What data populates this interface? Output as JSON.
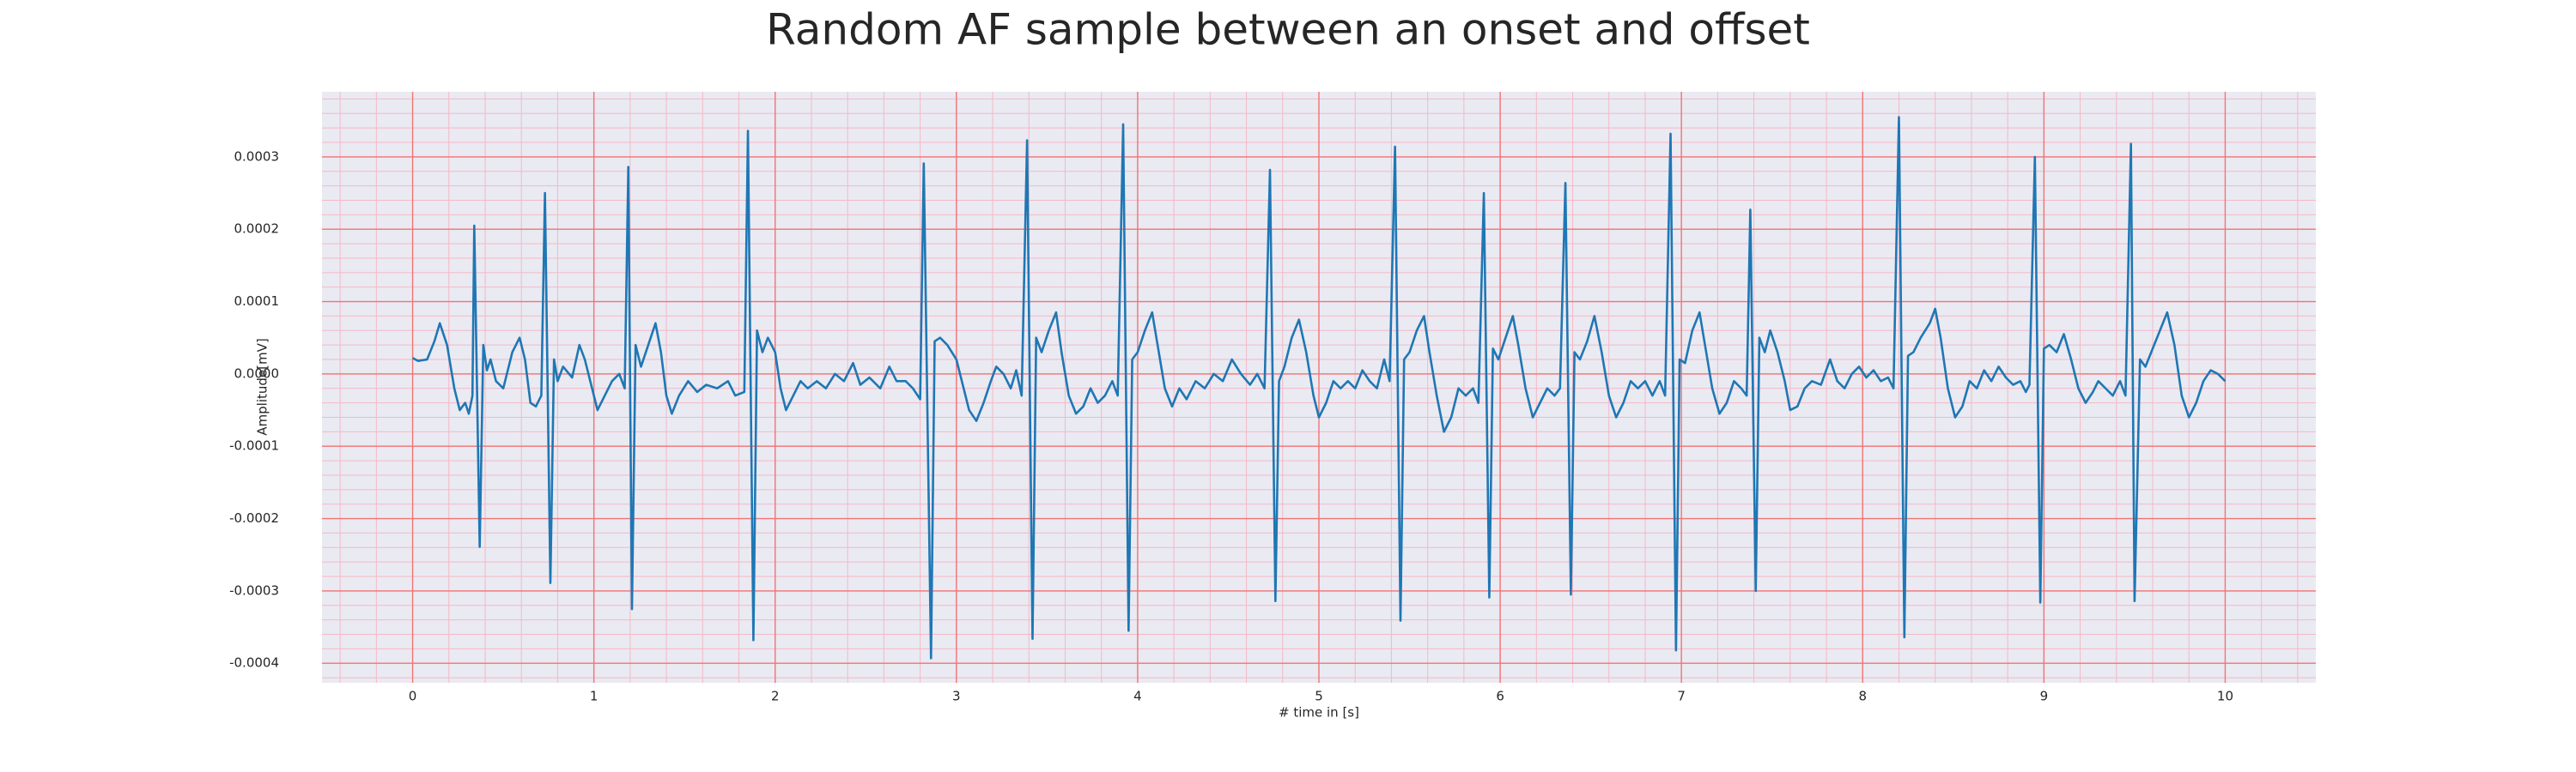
{
  "chart_data": {
    "type": "line",
    "title": "Random AF sample between an onset and offset",
    "x_label": "# time in [s]",
    "y_label": "Amplitude[mV]",
    "color": "#1f77b4",
    "grid": true,
    "minor_grid": true,
    "xlim": [
      -0.5,
      10.5
    ],
    "ylim": [
      -0.000427,
      0.00039
    ],
    "xticks": [
      0,
      1,
      2,
      3,
      4,
      5,
      6,
      7,
      8,
      9,
      10
    ],
    "yticks": [
      {
        "value": -0.0004,
        "label": "-0.0004"
      },
      {
        "value": -0.0003,
        "label": "-0.0003"
      },
      {
        "value": -0.0002,
        "label": "-0.0002"
      },
      {
        "value": -0.0001,
        "label": "-0.0001"
      },
      {
        "value": 0,
        "label": "0.0000"
      },
      {
        "value": 0.0001,
        "label": "0.0001"
      },
      {
        "value": 0.0002,
        "label": "0.0002"
      },
      {
        "value": 0.0003,
        "label": "0.0003"
      }
    ],
    "x": [
      0.0,
      0.03,
      0.08,
      0.12,
      0.15,
      0.19,
      0.23,
      0.26,
      0.29,
      0.31,
      0.33,
      0.34,
      0.37,
      0.39,
      0.41,
      0.43,
      0.46,
      0.5,
      0.55,
      0.59,
      0.62,
      0.65,
      0.68,
      0.71,
      0.73,
      0.76,
      0.78,
      0.8,
      0.83,
      0.88,
      0.92,
      0.95,
      0.99,
      1.02,
      1.06,
      1.1,
      1.14,
      1.17,
      1.19,
      1.21,
      1.23,
      1.26,
      1.3,
      1.34,
      1.37,
      1.4,
      1.43,
      1.47,
      1.52,
      1.57,
      1.62,
      1.68,
      1.74,
      1.78,
      1.83,
      1.85,
      1.88,
      1.9,
      1.93,
      1.96,
      2.0,
      2.03,
      2.06,
      2.1,
      2.14,
      2.18,
      2.23,
      2.28,
      2.33,
      2.38,
      2.43,
      2.47,
      2.52,
      2.58,
      2.63,
      2.67,
      2.72,
      2.76,
      2.8,
      2.82,
      2.86,
      2.88,
      2.91,
      2.95,
      3.0,
      3.03,
      3.07,
      3.11,
      3.15,
      3.19,
      3.22,
      3.26,
      3.3,
      3.33,
      3.36,
      3.39,
      3.42,
      3.44,
      3.47,
      3.51,
      3.55,
      3.58,
      3.62,
      3.66,
      3.7,
      3.74,
      3.78,
      3.82,
      3.86,
      3.89,
      3.92,
      3.95,
      3.97,
      4.0,
      4.04,
      4.08,
      4.11,
      4.15,
      4.19,
      4.23,
      4.27,
      4.32,
      4.37,
      4.42,
      4.47,
      4.52,
      4.57,
      4.62,
      4.66,
      4.7,
      4.73,
      4.76,
      4.78,
      4.81,
      4.85,
      4.89,
      4.93,
      4.97,
      5.0,
      5.04,
      5.08,
      5.12,
      5.16,
      5.2,
      5.24,
      5.28,
      5.32,
      5.36,
      5.39,
      5.42,
      5.45,
      5.47,
      5.5,
      5.54,
      5.58,
      5.61,
      5.65,
      5.69,
      5.73,
      5.77,
      5.81,
      5.85,
      5.88,
      5.91,
      5.94,
      5.96,
      5.99,
      6.03,
      6.07,
      6.1,
      6.14,
      6.18,
      6.22,
      6.26,
      6.3,
      6.33,
      6.36,
      6.39,
      6.41,
      6.44,
      6.48,
      6.52,
      6.56,
      6.6,
      6.64,
      6.68,
      6.72,
      6.76,
      6.8,
      6.84,
      6.88,
      6.91,
      6.94,
      6.97,
      6.99,
      7.02,
      7.06,
      7.1,
      7.13,
      7.17,
      7.21,
      7.25,
      7.29,
      7.33,
      7.36,
      7.38,
      7.41,
      7.43,
      7.46,
      7.49,
      7.53,
      7.57,
      7.6,
      7.64,
      7.68,
      7.72,
      7.77,
      7.82,
      7.86,
      7.9,
      7.94,
      7.98,
      8.02,
      8.06,
      8.1,
      8.14,
      8.17,
      8.2,
      8.23,
      8.25,
      8.28,
      8.32,
      8.37,
      8.4,
      8.43,
      8.47,
      8.51,
      8.55,
      8.59,
      8.63,
      8.67,
      8.71,
      8.75,
      8.79,
      8.83,
      8.87,
      8.9,
      8.92,
      8.95,
      8.98,
      9.0,
      9.03,
      9.07,
      9.11,
      9.15,
      9.19,
      9.23,
      9.27,
      9.3,
      9.34,
      9.38,
      9.42,
      9.45,
      9.48,
      9.5,
      9.53,
      9.56,
      9.6,
      9.64,
      9.68,
      9.72,
      9.76,
      9.8,
      9.84,
      9.88,
      9.92,
      9.96,
      10.0
    ],
    "values": [
      2.2e-05,
      1.8e-05,
      2e-05,
      4.5e-05,
      7e-05,
      4e-05,
      -2e-05,
      -5e-05,
      -4e-05,
      -5.5e-05,
      -3e-05,
      0.000205,
      -0.000239,
      4e-05,
      5e-06,
      2e-05,
      -1e-05,
      -2e-05,
      3e-05,
      5e-05,
      2e-05,
      -4e-05,
      -4.5e-05,
      -3e-05,
      0.00025,
      -0.000289,
      2e-05,
      -1e-05,
      1e-05,
      -5e-06,
      4e-05,
      2e-05,
      -2e-05,
      -5e-05,
      -3e-05,
      -1e-05,
      0,
      -2e-05,
      0.000286,
      -0.000325,
      4e-05,
      1e-05,
      4e-05,
      7e-05,
      3e-05,
      -3e-05,
      -5.5e-05,
      -3e-05,
      -1e-05,
      -2.5e-05,
      -1.5e-05,
      -2e-05,
      -1e-05,
      -3e-05,
      -2.5e-05,
      0.000336,
      -0.000368,
      6e-05,
      3e-05,
      5e-05,
      3e-05,
      -2e-05,
      -5e-05,
      -3e-05,
      -1e-05,
      -2e-05,
      -1e-05,
      -2e-05,
      0,
      -1e-05,
      1.5e-05,
      -1.5e-05,
      -5e-06,
      -2e-05,
      1e-05,
      -1e-05,
      -1e-05,
      -2e-05,
      -3.5e-05,
      0.000291,
      -0.000393,
      4.5e-05,
      5e-05,
      4e-05,
      2e-05,
      -1e-05,
      -5e-05,
      -6.5e-05,
      -4e-05,
      -1e-05,
      1e-05,
      0,
      -2e-05,
      5e-06,
      -3e-05,
      0.000323,
      -0.000366,
      5e-05,
      3e-05,
      6e-05,
      8.5e-05,
      3e-05,
      -3e-05,
      -5.5e-05,
      -4.5e-05,
      -2e-05,
      -4e-05,
      -3e-05,
      -1e-05,
      -3e-05,
      0.000345,
      -0.000355,
      2e-05,
      3e-05,
      6e-05,
      8.5e-05,
      4e-05,
      -2e-05,
      -4.5e-05,
      -2e-05,
      -3.5e-05,
      -1e-05,
      -2e-05,
      0,
      -1e-05,
      2e-05,
      0,
      -1.5e-05,
      0,
      -2e-05,
      0.000282,
      -0.000314,
      -1e-05,
      1e-05,
      5e-05,
      7.5e-05,
      3e-05,
      -3e-05,
      -6e-05,
      -4e-05,
      -1e-05,
      -2e-05,
      -1e-05,
      -2e-05,
      5e-06,
      -1e-05,
      -2e-05,
      2e-05,
      -1e-05,
      0.000314,
      -0.000341,
      2e-05,
      3e-05,
      6e-05,
      8e-05,
      3e-05,
      -3e-05,
      -8e-05,
      -6e-05,
      -2e-05,
      -3e-05,
      -2e-05,
      -4e-05,
      0.00025,
      -0.000309,
      3.5e-05,
      2e-05,
      5e-05,
      8e-05,
      4e-05,
      -2e-05,
      -6e-05,
      -4e-05,
      -2e-05,
      -3e-05,
      -2e-05,
      0.000264,
      -0.000305,
      3e-05,
      2e-05,
      4.5e-05,
      8e-05,
      3e-05,
      -3e-05,
      -6e-05,
      -4e-05,
      -1e-05,
      -2e-05,
      -1e-05,
      -3e-05,
      -1e-05,
      -3e-05,
      0.000332,
      -0.000382,
      2e-05,
      1.5e-05,
      6e-05,
      8.5e-05,
      4e-05,
      -2e-05,
      -5.5e-05,
      -4e-05,
      -1e-05,
      -2e-05,
      -3e-05,
      0.000227,
      -0.0003,
      5e-05,
      3e-05,
      6e-05,
      3e-05,
      -1e-05,
      -5e-05,
      -4.5e-05,
      -2e-05,
      -1e-05,
      -1.5e-05,
      2e-05,
      -1e-05,
      -2e-05,
      0,
      1e-05,
      -5e-06,
      5e-06,
      -1e-05,
      -5e-06,
      -2e-05,
      0.000355,
      -0.000364,
      2.5e-05,
      3e-05,
      5e-05,
      7e-05,
      9e-05,
      5e-05,
      -2e-05,
      -6e-05,
      -4.5e-05,
      -1e-05,
      -2e-05,
      5e-06,
      -1e-05,
      1e-05,
      -5e-06,
      -1.5e-05,
      -1e-05,
      -2.5e-05,
      -1.5e-05,
      0.0003,
      -0.000316,
      3.5e-05,
      4e-05,
      3e-05,
      5.5e-05,
      2e-05,
      -2e-05,
      -4e-05,
      -2.5e-05,
      -1e-05,
      -2e-05,
      -3e-05,
      -1e-05,
      -3e-05,
      0.000318,
      -0.000314,
      2e-05,
      1e-05,
      3.5e-05,
      6e-05,
      8.5e-05,
      4e-05,
      -3e-05,
      -6e-05,
      -4e-05,
      -1e-05,
      5e-06,
      0,
      -1e-05
    ]
  }
}
